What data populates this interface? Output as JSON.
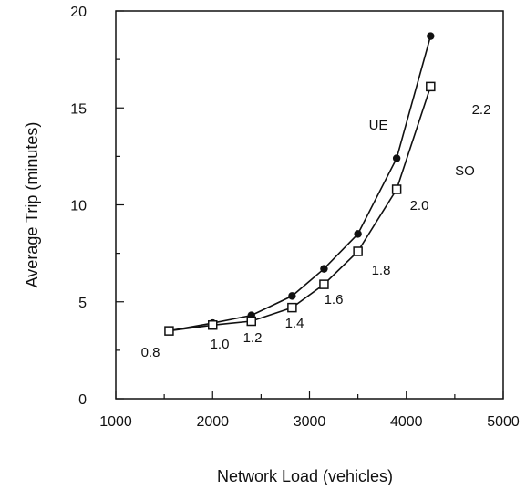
{
  "chart_data": {
    "type": "line",
    "title": "",
    "xlabel": "Network Load (vehicles)",
    "ylabel": "Average Trip (minutes)",
    "xlim": [
      1000,
      5000
    ],
    "ylim": [
      0,
      20
    ],
    "x_ticks": [
      "1000",
      "2000",
      "3000",
      "4000",
      "5000"
    ],
    "y_ticks": [
      "0",
      "5",
      "10",
      "15",
      "20"
    ],
    "grid": false,
    "colors": {
      "line": "#111111",
      "background": "#ffffff"
    },
    "series": [
      {
        "name": "UE",
        "marker": "filled-circle",
        "x": [
          1550,
          2000,
          2400,
          2820,
          3150,
          3500,
          3900,
          4250
        ],
        "y": [
          3.5,
          3.9,
          4.3,
          5.3,
          6.7,
          8.5,
          12.4,
          18.7
        ]
      },
      {
        "name": "SO",
        "marker": "open-square",
        "x": [
          1550,
          2000,
          2400,
          2820,
          3150,
          3500,
          3900,
          4250
        ],
        "y": [
          3.5,
          3.8,
          4.0,
          4.7,
          5.9,
          7.6,
          10.8,
          16.1
        ]
      }
    ],
    "point_labels": [
      "0.8",
      "1.0",
      "1.2",
      "1.4",
      "1.6",
      "1.8",
      "2.0",
      "2.2"
    ]
  }
}
